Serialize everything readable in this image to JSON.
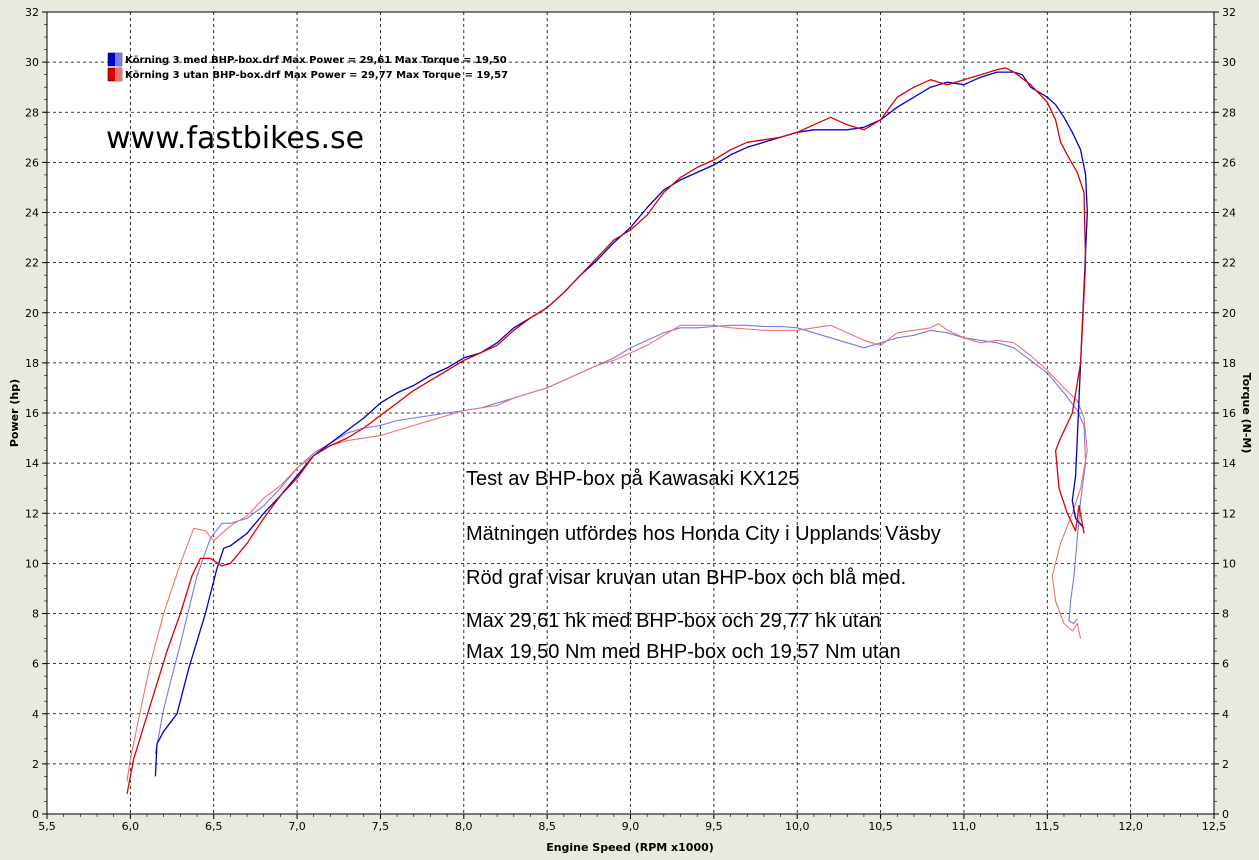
{
  "colors": {
    "background": "#eae9df",
    "plot_background": "#ffffff",
    "grid": "#000000",
    "power_blue": "#0000cc",
    "torque_blue": "#7777ee",
    "power_red": "#dd0000",
    "torque_red": "#f07070"
  },
  "website": "www.fastbikes.se",
  "notes": [
    "Test av BHP-box på Kawasaki KX125",
    "Mätningen utfördes hos Honda City i Upplands Väsby",
    "Röd graf visar kruvan utan BHP-box och blå med.",
    "Max 29,61 hk med BHP-box och 29,77 hk utan",
    "Max 19,50 Nm med BHP-box och 19,57 Nm utan"
  ],
  "legend": [
    {
      "label": "Körning 3 med BHP-box.drf Max Power = 29,61 Max Torque = 19,50",
      "color": "#0000cc"
    },
    {
      "label": "Körning 3 utan BHP-box.drf Max Power = 29,77 Max Torque = 19,57",
      "color": "#dd0000"
    }
  ],
  "chart_data": {
    "type": "line",
    "title": "",
    "xlabel": "Engine Speed (RPM x1000)",
    "ylabel": "Power (hp)",
    "y2label": "Torque (N-M)",
    "xlim": [
      5.5,
      12.5
    ],
    "ylim": [
      0,
      32
    ],
    "y2lim": [
      0,
      32
    ],
    "x_ticks": [
      "5,5",
      "6,0",
      "6,5",
      "7,0",
      "7,5",
      "8,0",
      "8,5",
      "9,0",
      "9,5",
      "10,0",
      "10,5",
      "11,0",
      "11,5",
      "12,0",
      "12,5"
    ],
    "y_ticks": [
      "0",
      "2",
      "4",
      "6",
      "8",
      "10",
      "12",
      "14",
      "16",
      "18",
      "20",
      "22",
      "24",
      "26",
      "28",
      "30",
      "32"
    ],
    "grid": true,
    "legend_position": "top-left",
    "series": [
      {
        "name": "Körning 3 med BHP-box.drf Max Power = 29,61 Max Torque = 19,50",
        "color": "#0000cc",
        "points": [
          [
            6.15,
            1.5
          ],
          [
            6.16,
            2.8
          ],
          [
            6.2,
            3.3
          ],
          [
            6.28,
            4.0
          ],
          [
            6.35,
            5.8
          ],
          [
            6.45,
            8.0
          ],
          [
            6.52,
            9.8
          ],
          [
            6.56,
            10.6
          ],
          [
            6.6,
            10.7
          ],
          [
            6.7,
            11.2
          ],
          [
            6.8,
            12.0
          ],
          [
            6.9,
            12.7
          ],
          [
            7.0,
            13.5
          ],
          [
            7.1,
            14.3
          ],
          [
            7.2,
            14.8
          ],
          [
            7.3,
            15.3
          ],
          [
            7.4,
            15.8
          ],
          [
            7.5,
            16.4
          ],
          [
            7.6,
            16.8
          ],
          [
            7.7,
            17.1
          ],
          [
            7.8,
            17.5
          ],
          [
            7.9,
            17.8
          ],
          [
            8.0,
            18.2
          ],
          [
            8.1,
            18.4
          ],
          [
            8.2,
            18.8
          ],
          [
            8.3,
            19.4
          ],
          [
            8.4,
            19.8
          ],
          [
            8.5,
            20.2
          ],
          [
            8.6,
            20.8
          ],
          [
            8.7,
            21.5
          ],
          [
            8.8,
            22.1
          ],
          [
            8.9,
            22.8
          ],
          [
            9.0,
            23.4
          ],
          [
            9.1,
            24.2
          ],
          [
            9.2,
            24.9
          ],
          [
            9.3,
            25.3
          ],
          [
            9.4,
            25.6
          ],
          [
            9.5,
            25.9
          ],
          [
            9.6,
            26.3
          ],
          [
            9.7,
            26.6
          ],
          [
            9.8,
            26.8
          ],
          [
            9.9,
            27.0
          ],
          [
            10.0,
            27.2
          ],
          [
            10.1,
            27.3
          ],
          [
            10.2,
            27.3
          ],
          [
            10.3,
            27.3
          ],
          [
            10.4,
            27.4
          ],
          [
            10.5,
            27.7
          ],
          [
            10.6,
            28.2
          ],
          [
            10.7,
            28.6
          ],
          [
            10.8,
            29.0
          ],
          [
            10.9,
            29.2
          ],
          [
            11.0,
            29.1
          ],
          [
            11.1,
            29.4
          ],
          [
            11.2,
            29.6
          ],
          [
            11.3,
            29.6
          ],
          [
            11.35,
            29.5
          ],
          [
            11.4,
            29.0
          ],
          [
            11.5,
            28.6
          ],
          [
            11.55,
            28.3
          ],
          [
            11.6,
            27.8
          ],
          [
            11.65,
            27.2
          ],
          [
            11.7,
            26.5
          ],
          [
            11.73,
            25.5
          ],
          [
            11.74,
            24.0
          ],
          [
            11.72,
            21.0
          ],
          [
            11.7,
            18.0
          ],
          [
            11.68,
            15.0
          ],
          [
            11.67,
            13.5
          ],
          [
            11.65,
            12.5
          ],
          [
            11.67,
            11.8
          ],
          [
            11.72,
            11.4
          ]
        ]
      },
      {
        "name": "Körning 3 utan BHP-box.drf Max Power = 29,77 Max Torque = 19,57",
        "color": "#dd0000",
        "points": [
          [
            5.98,
            0.8
          ],
          [
            6.0,
            1.5
          ],
          [
            6.02,
            2.2
          ],
          [
            6.08,
            3.5
          ],
          [
            6.15,
            5.0
          ],
          [
            6.22,
            6.5
          ],
          [
            6.3,
            8.0
          ],
          [
            6.37,
            9.5
          ],
          [
            6.42,
            10.2
          ],
          [
            6.48,
            10.2
          ],
          [
            6.55,
            9.9
          ],
          [
            6.6,
            10.0
          ],
          [
            6.7,
            10.8
          ],
          [
            6.8,
            11.8
          ],
          [
            6.9,
            12.7
          ],
          [
            7.0,
            13.4
          ],
          [
            7.1,
            14.3
          ],
          [
            7.2,
            14.7
          ],
          [
            7.3,
            15.0
          ],
          [
            7.4,
            15.4
          ],
          [
            7.5,
            15.9
          ],
          [
            7.6,
            16.4
          ],
          [
            7.7,
            16.9
          ],
          [
            7.8,
            17.3
          ],
          [
            7.9,
            17.7
          ],
          [
            8.0,
            18.1
          ],
          [
            8.1,
            18.4
          ],
          [
            8.2,
            18.7
          ],
          [
            8.3,
            19.3
          ],
          [
            8.4,
            19.8
          ],
          [
            8.5,
            20.2
          ],
          [
            8.6,
            20.8
          ],
          [
            8.7,
            21.5
          ],
          [
            8.8,
            22.2
          ],
          [
            8.9,
            22.9
          ],
          [
            9.0,
            23.3
          ],
          [
            9.1,
            23.9
          ],
          [
            9.2,
            24.8
          ],
          [
            9.3,
            25.4
          ],
          [
            9.4,
            25.8
          ],
          [
            9.5,
            26.1
          ],
          [
            9.6,
            26.5
          ],
          [
            9.7,
            26.8
          ],
          [
            9.8,
            26.9
          ],
          [
            9.9,
            27.0
          ],
          [
            10.0,
            27.2
          ],
          [
            10.1,
            27.5
          ],
          [
            10.2,
            27.8
          ],
          [
            10.3,
            27.5
          ],
          [
            10.4,
            27.3
          ],
          [
            10.5,
            27.7
          ],
          [
            10.6,
            28.6
          ],
          [
            10.7,
            29.0
          ],
          [
            10.8,
            29.3
          ],
          [
            10.9,
            29.1
          ],
          [
            11.0,
            29.3
          ],
          [
            11.1,
            29.5
          ],
          [
            11.2,
            29.7
          ],
          [
            11.25,
            29.77
          ],
          [
            11.3,
            29.6
          ],
          [
            11.4,
            29.1
          ],
          [
            11.5,
            28.4
          ],
          [
            11.55,
            27.7
          ],
          [
            11.58,
            26.8
          ],
          [
            11.62,
            26.3
          ],
          [
            11.68,
            25.6
          ],
          [
            11.72,
            24.8
          ],
          [
            11.73,
            22.0
          ],
          [
            11.7,
            18.0
          ],
          [
            11.65,
            16.0
          ],
          [
            11.58,
            15.0
          ],
          [
            11.55,
            14.5
          ],
          [
            11.57,
            13.0
          ],
          [
            11.62,
            12.0
          ],
          [
            11.67,
            11.3
          ],
          [
            11.69,
            12.3
          ],
          [
            11.72,
            11.2
          ]
        ]
      },
      {
        "name": "Körning 3 med BHP-box.drf Max Power = 29,61 Max Torque = 19,50",
        "color": "#7777ee",
        "points": [
          [
            6.15,
            2.4
          ],
          [
            6.2,
            4.2
          ],
          [
            6.3,
            6.8
          ],
          [
            6.4,
            9.5
          ],
          [
            6.48,
            11.0
          ],
          [
            6.55,
            11.6
          ],
          [
            6.6,
            11.6
          ],
          [
            6.7,
            11.8
          ],
          [
            6.8,
            12.3
          ],
          [
            6.9,
            13.0
          ],
          [
            7.0,
            13.8
          ],
          [
            7.1,
            14.4
          ],
          [
            7.2,
            14.8
          ],
          [
            7.3,
            15.2
          ],
          [
            7.4,
            15.4
          ],
          [
            7.5,
            15.5
          ],
          [
            7.6,
            15.7
          ],
          [
            7.7,
            15.8
          ],
          [
            7.8,
            15.9
          ],
          [
            7.9,
            16.0
          ],
          [
            8.0,
            16.1
          ],
          [
            8.1,
            16.2
          ],
          [
            8.2,
            16.4
          ],
          [
            8.3,
            16.6
          ],
          [
            8.4,
            16.8
          ],
          [
            8.5,
            17.0
          ],
          [
            8.6,
            17.3
          ],
          [
            8.7,
            17.6
          ],
          [
            8.8,
            17.9
          ],
          [
            8.9,
            18.2
          ],
          [
            9.0,
            18.6
          ],
          [
            9.1,
            18.9
          ],
          [
            9.2,
            19.2
          ],
          [
            9.3,
            19.4
          ],
          [
            9.4,
            19.4
          ],
          [
            9.5,
            19.45
          ],
          [
            9.6,
            19.5
          ],
          [
            9.7,
            19.5
          ],
          [
            9.8,
            19.45
          ],
          [
            9.9,
            19.45
          ],
          [
            10.0,
            19.4
          ],
          [
            10.1,
            19.2
          ],
          [
            10.2,
            19.0
          ],
          [
            10.3,
            18.8
          ],
          [
            10.4,
            18.6
          ],
          [
            10.5,
            18.8
          ],
          [
            10.6,
            19.0
          ],
          [
            10.7,
            19.1
          ],
          [
            10.8,
            19.3
          ],
          [
            10.9,
            19.2
          ],
          [
            11.0,
            19.0
          ],
          [
            11.1,
            18.9
          ],
          [
            11.2,
            18.8
          ],
          [
            11.3,
            18.6
          ],
          [
            11.4,
            18.1
          ],
          [
            11.5,
            17.6
          ],
          [
            11.6,
            16.8
          ],
          [
            11.68,
            16.1
          ],
          [
            11.72,
            15.5
          ],
          [
            11.73,
            14.0
          ],
          [
            11.7,
            12.5
          ],
          [
            11.68,
            11.0
          ],
          [
            11.66,
            9.5
          ],
          [
            11.64,
            8.5
          ],
          [
            11.63,
            7.7
          ],
          [
            11.66,
            7.6
          ],
          [
            11.68,
            7.8
          ]
        ]
      },
      {
        "name": "Körning 3 utan BHP-box.drf Max Power = 29,77 Max Torque = 19,57",
        "color": "#f07070",
        "points": [
          [
            5.98,
            1.3
          ],
          [
            6.0,
            2.2
          ],
          [
            6.05,
            3.8
          ],
          [
            6.12,
            6.0
          ],
          [
            6.2,
            8.0
          ],
          [
            6.3,
            10.0
          ],
          [
            6.38,
            11.4
          ],
          [
            6.45,
            11.3
          ],
          [
            6.5,
            10.9
          ],
          [
            6.55,
            11.2
          ],
          [
            6.6,
            11.5
          ],
          [
            6.7,
            11.9
          ],
          [
            6.8,
            12.6
          ],
          [
            6.9,
            13.1
          ],
          [
            7.0,
            13.8
          ],
          [
            7.1,
            14.3
          ],
          [
            7.2,
            14.7
          ],
          [
            7.3,
            14.9
          ],
          [
            7.4,
            15.0
          ],
          [
            7.5,
            15.1
          ],
          [
            7.6,
            15.3
          ],
          [
            7.7,
            15.5
          ],
          [
            7.8,
            15.7
          ],
          [
            7.9,
            15.9
          ],
          [
            8.0,
            16.1
          ],
          [
            8.1,
            16.2
          ],
          [
            8.2,
            16.3
          ],
          [
            8.3,
            16.6
          ],
          [
            8.4,
            16.8
          ],
          [
            8.5,
            17.0
          ],
          [
            8.6,
            17.3
          ],
          [
            8.7,
            17.6
          ],
          [
            8.8,
            17.9
          ],
          [
            8.9,
            18.1
          ],
          [
            9.0,
            18.4
          ],
          [
            9.1,
            18.7
          ],
          [
            9.2,
            19.1
          ],
          [
            9.3,
            19.5
          ],
          [
            9.4,
            19.5
          ],
          [
            9.5,
            19.5
          ],
          [
            9.6,
            19.4
          ],
          [
            9.7,
            19.35
          ],
          [
            9.8,
            19.3
          ],
          [
            9.9,
            19.3
          ],
          [
            10.0,
            19.3
          ],
          [
            10.1,
            19.4
          ],
          [
            10.2,
            19.5
          ],
          [
            10.3,
            19.2
          ],
          [
            10.4,
            18.9
          ],
          [
            10.5,
            18.7
          ],
          [
            10.6,
            19.2
          ],
          [
            10.7,
            19.3
          ],
          [
            10.8,
            19.4
          ],
          [
            10.85,
            19.57
          ],
          [
            10.9,
            19.3
          ],
          [
            11.0,
            19.0
          ],
          [
            11.1,
            18.8
          ],
          [
            11.2,
            18.9
          ],
          [
            11.3,
            18.8
          ],
          [
            11.4,
            18.3
          ],
          [
            11.5,
            17.7
          ],
          [
            11.6,
            17.0
          ],
          [
            11.68,
            16.5
          ],
          [
            11.72,
            15.8
          ],
          [
            11.74,
            14.5
          ],
          [
            11.7,
            13.0
          ],
          [
            11.65,
            12.0
          ],
          [
            11.58,
            10.8
          ],
          [
            11.53,
            9.5
          ],
          [
            11.55,
            8.5
          ],
          [
            11.6,
            7.6
          ],
          [
            11.65,
            7.3
          ],
          [
            11.68,
            7.6
          ],
          [
            11.7,
            7.0
          ]
        ]
      }
    ]
  }
}
